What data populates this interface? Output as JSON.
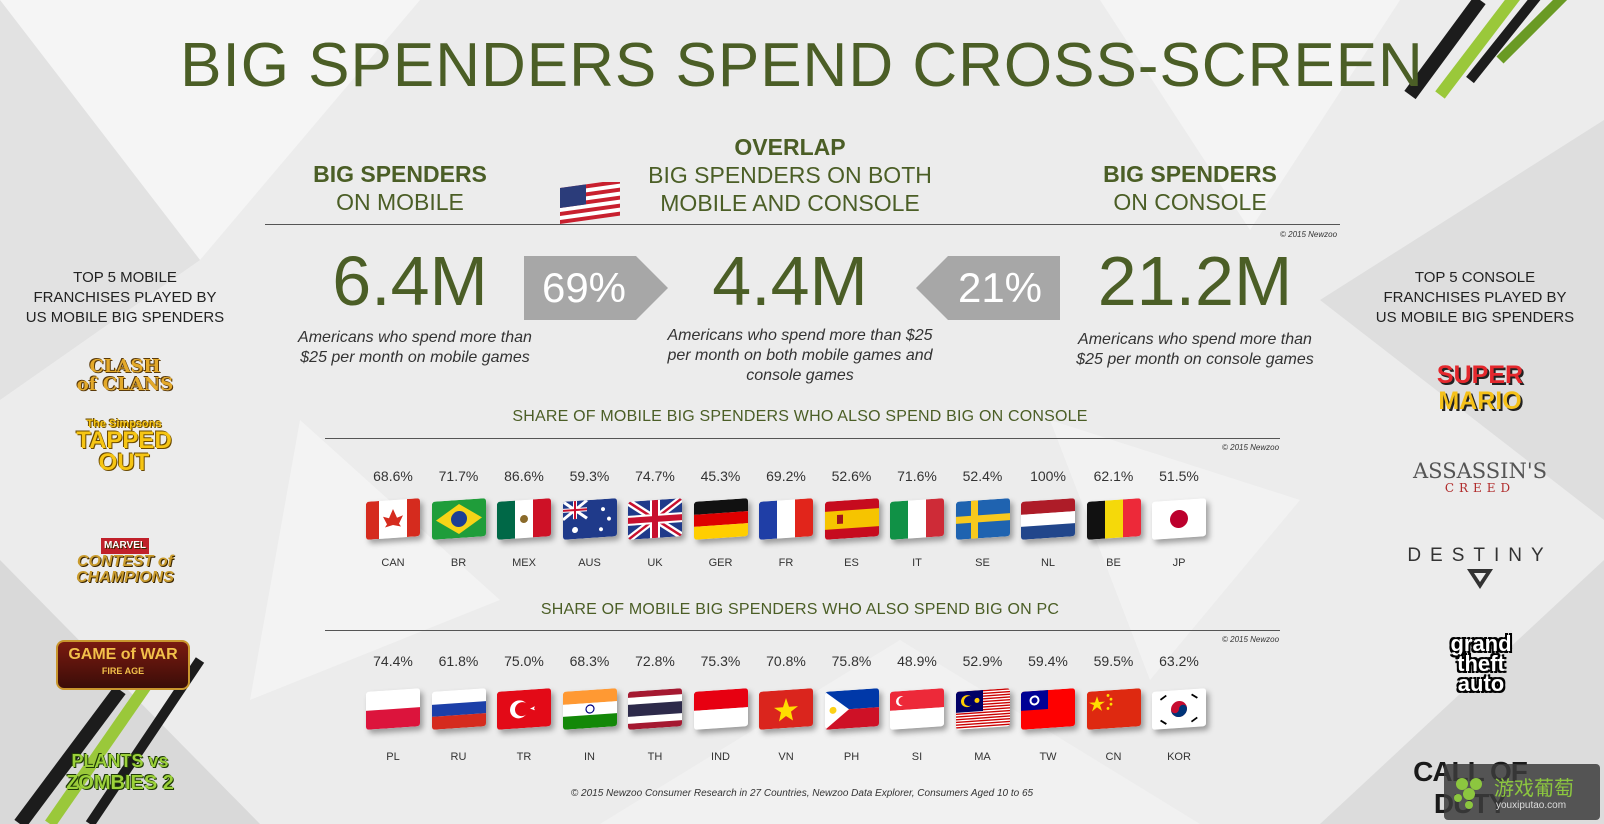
{
  "title": "BIG SPENDERS SPEND CROSS-SCREEN",
  "columns": {
    "mobile": {
      "header_bold": "BIG SPENDERS",
      "header_reg": "ON MOBILE",
      "value": "6.4M",
      "desc_line1": "Americans who spend more than",
      "desc_line2": "$25 per month on mobile games"
    },
    "overlap": {
      "header_bold": "OVERLAP",
      "header_line2": "BIG SPENDERS ON BOTH",
      "header_line3": "MOBILE AND CONSOLE",
      "value": "4.4M",
      "desc_line1": "Americans who spend more than $25",
      "desc_line2": "per month on both mobile games and",
      "desc_line3": "console games"
    },
    "console": {
      "header_bold": "BIG SPENDERS",
      "header_reg": "ON CONSOLE",
      "value": "21.2M",
      "desc_line1": "Americans who spend more than",
      "desc_line2": "$25 per month on console games"
    }
  },
  "arrows": {
    "left": "69%",
    "right": "21%"
  },
  "copyright_small": "© 2015 Newzoo",
  "left_panel": {
    "title_lines": [
      "TOP 5 MOBILE",
      "FRANCHISES PLAYED BY",
      "US MOBILE BIG SPENDERS"
    ],
    "logos": [
      {
        "icon": "clash-of-clans-logo",
        "lines": [
          "CLASH",
          "of CLANS"
        ]
      },
      {
        "icon": "simpsons-tapped-out-logo",
        "lines": [
          "The Simpsons",
          "TAPPED",
          "OUT"
        ]
      },
      {
        "icon": "contest-of-champions-logo",
        "lines": [
          "MARVEL",
          "CONTEST of CHAMPIONS"
        ]
      },
      {
        "icon": "game-of-war-logo",
        "lines": [
          "GAME of WAR",
          "FIRE AGE"
        ]
      },
      {
        "icon": "plants-vs-zombies-2-logo",
        "lines": [
          "PLANTS vs",
          "ZOMBIES 2"
        ]
      }
    ]
  },
  "right_panel": {
    "title_lines": [
      "TOP 5 CONSOLE",
      "FRANCHISES PLAYED BY",
      "US MOBILE BIG SPENDERS"
    ],
    "logos": [
      {
        "icon": "super-mario-logo",
        "lines": [
          "SUPER",
          "MARIO"
        ]
      },
      {
        "icon": "assassins-creed-logo",
        "lines": [
          "ASSASSIN'S",
          "CREED"
        ]
      },
      {
        "icon": "destiny-logo",
        "lines": [
          "DESTINY"
        ]
      },
      {
        "icon": "gta-logo",
        "lines": [
          "grand",
          "theft",
          "auto"
        ]
      },
      {
        "icon": "call-of-duty-logo",
        "lines": [
          "CALL OF DUTY"
        ]
      }
    ]
  },
  "console_section": {
    "title": "SHARE OF MOBILE BIG SPENDERS WHO ALSO SPEND BIG ON CONSOLE",
    "countries": [
      {
        "code": "CAN",
        "pct": "68.6%",
        "flag": "canada-flag-icon"
      },
      {
        "code": "BR",
        "pct": "71.7%",
        "flag": "brazil-flag-icon"
      },
      {
        "code": "MEX",
        "pct": "86.6%",
        "flag": "mexico-flag-icon"
      },
      {
        "code": "AUS",
        "pct": "59.3%",
        "flag": "australia-flag-icon"
      },
      {
        "code": "UK",
        "pct": "74.7%",
        "flag": "uk-flag-icon"
      },
      {
        "code": "GER",
        "pct": "45.3%",
        "flag": "germany-flag-icon"
      },
      {
        "code": "FR",
        "pct": "69.2%",
        "flag": "france-flag-icon"
      },
      {
        "code": "ES",
        "pct": "52.6%",
        "flag": "spain-flag-icon"
      },
      {
        "code": "IT",
        "pct": "71.6%",
        "flag": "italy-flag-icon"
      },
      {
        "code": "SE",
        "pct": "52.4%",
        "flag": "sweden-flag-icon"
      },
      {
        "code": "NL",
        "pct": "100%",
        "flag": "netherlands-flag-icon"
      },
      {
        "code": "BE",
        "pct": "62.1%",
        "flag": "belgium-flag-icon"
      },
      {
        "code": "JP",
        "pct": "51.5%",
        "flag": "japan-flag-icon"
      }
    ]
  },
  "pc_section": {
    "title": "SHARE OF MOBILE BIG SPENDERS WHO ALSO SPEND BIG ON PC",
    "countries": [
      {
        "code": "PL",
        "pct": "74.4%",
        "flag": "poland-flag-icon"
      },
      {
        "code": "RU",
        "pct": "61.8%",
        "flag": "russia-flag-icon"
      },
      {
        "code": "TR",
        "pct": "75.0%",
        "flag": "turkey-flag-icon"
      },
      {
        "code": "IN",
        "pct": "68.3%",
        "flag": "india-flag-icon"
      },
      {
        "code": "TH",
        "pct": "72.8%",
        "flag": "thailand-flag-icon"
      },
      {
        "code": "IND",
        "pct": "75.3%",
        "flag": "indonesia-flag-icon"
      },
      {
        "code": "VN",
        "pct": "70.8%",
        "flag": "vietnam-flag-icon"
      },
      {
        "code": "PH",
        "pct": "75.8%",
        "flag": "philippines-flag-icon"
      },
      {
        "code": "SI",
        "pct": "48.9%",
        "flag": "singapore-flag-icon"
      },
      {
        "code": "MA",
        "pct": "52.9%",
        "flag": "malaysia-flag-icon"
      },
      {
        "code": "TW",
        "pct": "59.4%",
        "flag": "taiwan-flag-icon"
      },
      {
        "code": "CN",
        "pct": "59.5%",
        "flag": "china-flag-icon"
      },
      {
        "code": "KOR",
        "pct": "63.2%",
        "flag": "korea-flag-icon"
      }
    ]
  },
  "footer": "© 2015 Newzoo Consumer Research in 27 Countries, Newzoo Data Explorer, Consumers Aged 10 to 65",
  "watermark": {
    "cn": "游戏葡萄",
    "url": "youxiputao.com"
  },
  "colors": {
    "green": "#4b5e26",
    "arrow_grey": "#a7a7a7"
  }
}
